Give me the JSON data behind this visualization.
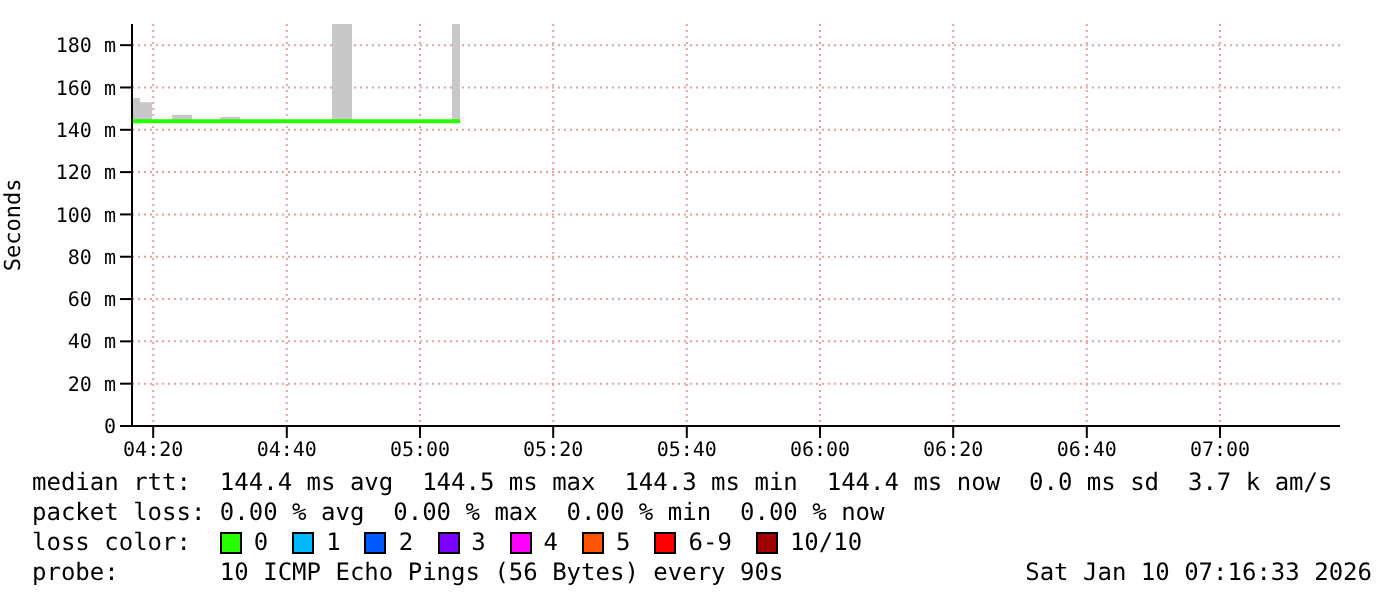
{
  "chart_data": {
    "type": "step",
    "ylabel": "Seconds",
    "xlim": [
      4.28,
      7.3
    ],
    "xticks": [
      {
        "value": 4.333,
        "label": "04:20"
      },
      {
        "value": 4.667,
        "label": "04:40"
      },
      {
        "value": 5,
        "label": "05:00"
      },
      {
        "value": 5.333,
        "label": "05:20"
      },
      {
        "value": 5.667,
        "label": "05:40"
      },
      {
        "value": 6,
        "label": "06:00"
      },
      {
        "value": 6.333,
        "label": "06:20"
      },
      {
        "value": 6.667,
        "label": "06:40"
      },
      {
        "value": 7,
        "label": "07:00"
      }
    ],
    "ylim": [
      0,
      190
    ],
    "yticks": [
      0,
      {
        "value": 20,
        "label": "20 m"
      },
      {
        "value": 40,
        "label": "40 m"
      },
      {
        "value": 60,
        "label": "60 m"
      },
      {
        "value": 80,
        "label": "80 m"
      },
      {
        "value": 100,
        "label": "100 m"
      },
      {
        "value": 120,
        "label": "120 m"
      },
      {
        "value": 140,
        "label": "140 m"
      },
      {
        "value": 160,
        "label": "160 m"
      },
      {
        "value": 180,
        "label": "180 m"
      }
    ],
    "grid": true,
    "legend": "bottom",
    "legend_title": "loss color:",
    "series": [
      {
        "name": "0",
        "color": "#26ff00",
        "x": [
          4.28,
          4.3,
          4.33,
          4.38,
          4.43,
          4.5,
          4.55,
          4.78,
          4.83,
          5.08,
          5.1
        ],
        "values": [
          144,
          144,
          144,
          144,
          144,
          144,
          144,
          144,
          144,
          144,
          144
        ],
        "lower": [
          144,
          144,
          144,
          144,
          144,
          144,
          144,
          144,
          144,
          144,
          144
        ],
        "upper": [
          155,
          153,
          144,
          147,
          144,
          146,
          144,
          190,
          144,
          190,
          190
        ]
      },
      {
        "name": "1",
        "color": "#00b8ff"
      },
      {
        "name": "2",
        "color": "#0059ff"
      },
      {
        "name": "3",
        "color": "#7e00ff"
      },
      {
        "name": "4",
        "color": "#ff00ff"
      },
      {
        "name": "5",
        "color": "#ff5500"
      },
      {
        "name": "6-9",
        "color": "#ff0000"
      },
      {
        "name": "10/10",
        "color": "#a10000"
      }
    ],
    "annotations": [
      "median rtt:  144.4 ms avg  144.5 ms max  144.3 ms min  144.4 ms now  0.0 ms sd  3.7 k am/s",
      "packet loss: 0.00 % avg  0.00 % max  0.00 % min  0.00 % now",
      "probe:       10 ICMP Echo Pings (56 Bytes) every 90s",
      "Sat Jan 10 07:16:33 2026"
    ]
  }
}
